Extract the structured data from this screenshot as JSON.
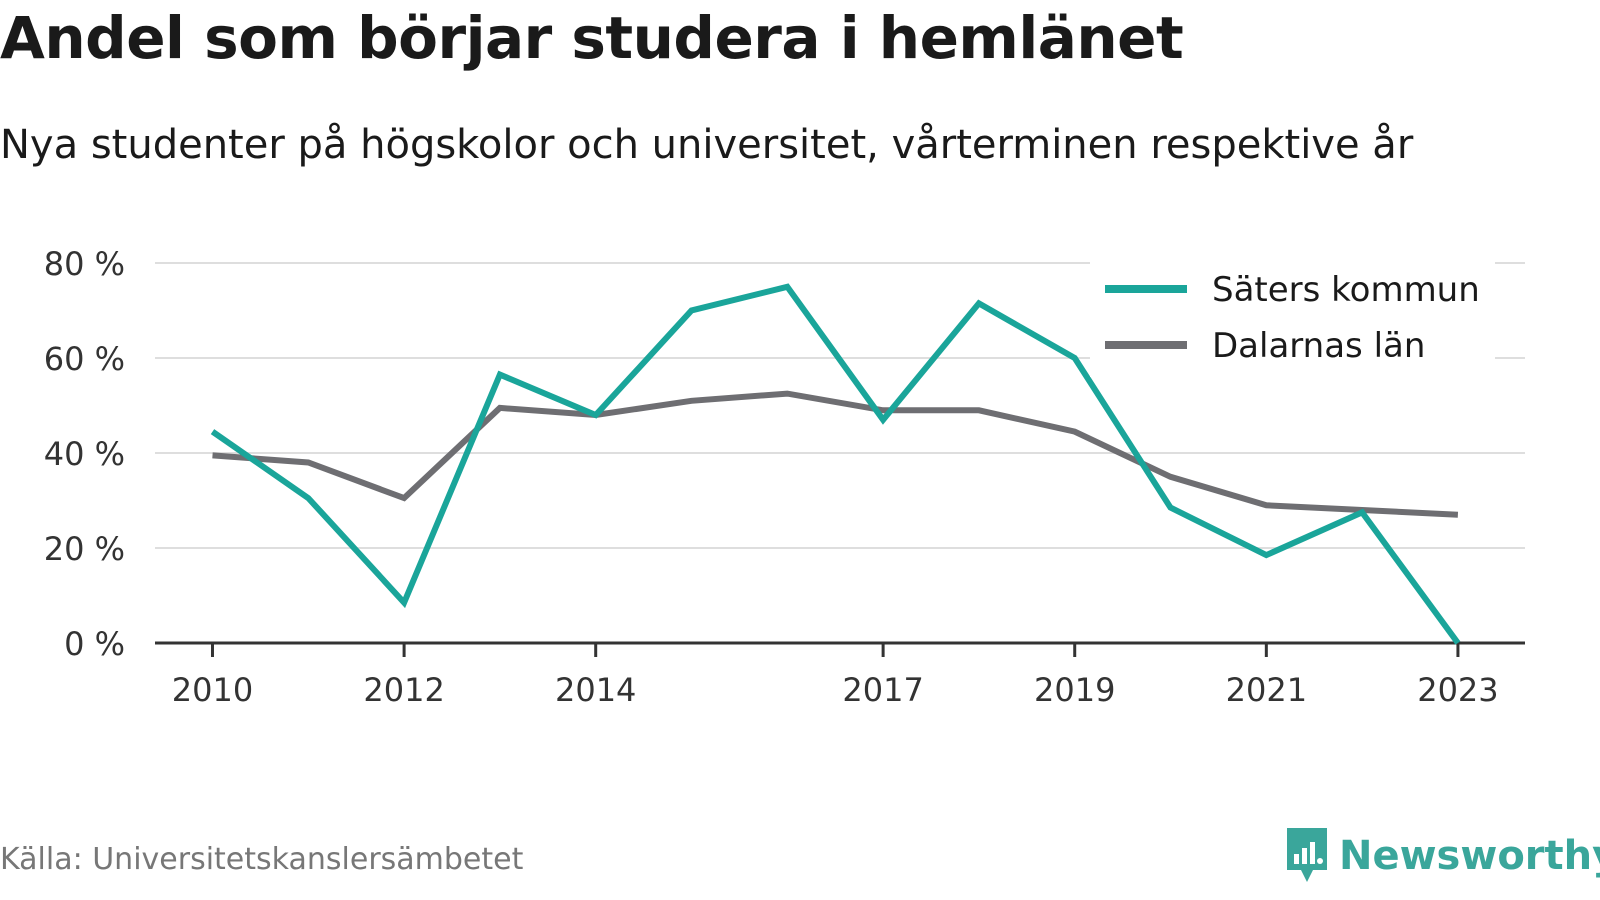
{
  "header": {
    "title": "Andel som börjar studera i hemlänet",
    "subtitle": "Nya studenter på högskolor och universitet, vårterminen respektive år"
  },
  "footer": {
    "source": "Källa: Universitetskanslersämbetet",
    "brand": "Newsworthy",
    "brand_icon": "newsworthy-logo-icon",
    "brand_color": "#3aa69b"
  },
  "chart_data": {
    "type": "line",
    "x": [
      2010,
      2011,
      2012,
      2013,
      2014,
      2015,
      2016,
      2017,
      2018,
      2019,
      2020,
      2021,
      2022,
      2023
    ],
    "x_tick_labels": [
      "2010",
      "2012",
      "2014",
      "2017",
      "2019",
      "2021",
      "2023"
    ],
    "x_ticks": [
      2010,
      2012,
      2014,
      2017,
      2019,
      2021,
      2023
    ],
    "y_ticks": [
      0,
      20,
      40,
      60,
      80
    ],
    "y_tick_labels": [
      "0 %",
      "20 %",
      "40 %",
      "60 %",
      "80 %"
    ],
    "ylim": [
      0,
      80
    ],
    "xlim": [
      2009.4,
      2023.7
    ],
    "grid": true,
    "legend_position": "top-right",
    "series": [
      {
        "name": "Säters kommun",
        "color": "#1aa59a",
        "values": [
          44.5,
          30.5,
          8.5,
          56.5,
          48,
          70,
          75,
          47,
          71.5,
          60,
          28.5,
          18.5,
          27.5,
          0
        ]
      },
      {
        "name": "Dalarnas län",
        "color": "#6e6e72",
        "values": [
          39.5,
          38,
          30.5,
          49.5,
          48,
          51,
          52.5,
          49,
          49,
          44.5,
          35,
          29,
          28,
          27
        ]
      }
    ]
  }
}
